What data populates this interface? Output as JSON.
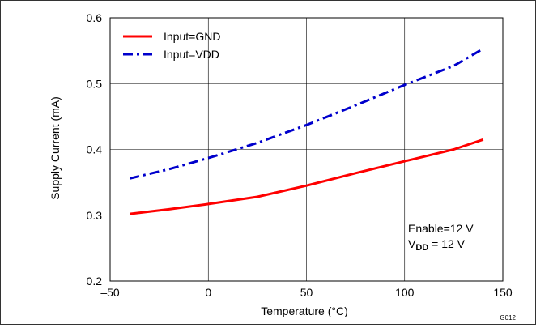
{
  "chart_data": {
    "type": "line",
    "title": "",
    "xlabel": "Temperature (°C)",
    "ylabel": "Supply Current (mA)",
    "xlim": [
      -50,
      150
    ],
    "ylim": [
      0.2,
      0.6
    ],
    "x_ticks": [
      -50,
      0,
      50,
      100,
      150
    ],
    "x_tick_labels": [
      "–50",
      "0",
      "50",
      "100",
      "150"
    ],
    "y_ticks": [
      0.2,
      0.3,
      0.4,
      0.5,
      0.6
    ],
    "y_tick_labels": [
      "0.2",
      "0.3",
      "0.4",
      "0.5",
      "0.6"
    ],
    "grid": true,
    "legend_position": "top-left",
    "series": [
      {
        "name": "Input=GND",
        "color": "#ff0000",
        "style": "solid",
        "x": [
          -40,
          -20,
          0,
          25,
          50,
          75,
          100,
          125,
          140
        ],
        "y": [
          0.302,
          0.309,
          0.317,
          0.328,
          0.345,
          0.364,
          0.382,
          0.4,
          0.415
        ]
      },
      {
        "name": "Input=VDD",
        "color": "#0000cc",
        "style": "dashdot",
        "x": [
          -40,
          -20,
          0,
          25,
          50,
          75,
          100,
          125,
          140
        ],
        "y": [
          0.356,
          0.37,
          0.387,
          0.41,
          0.437,
          0.467,
          0.498,
          0.527,
          0.553
        ]
      }
    ],
    "annotation": {
      "line1": "Enable=12 V",
      "line2_prefix": "V",
      "line2_sub": "DD",
      "line2_suffix": " = 12 V"
    },
    "figure_code": "G012"
  }
}
